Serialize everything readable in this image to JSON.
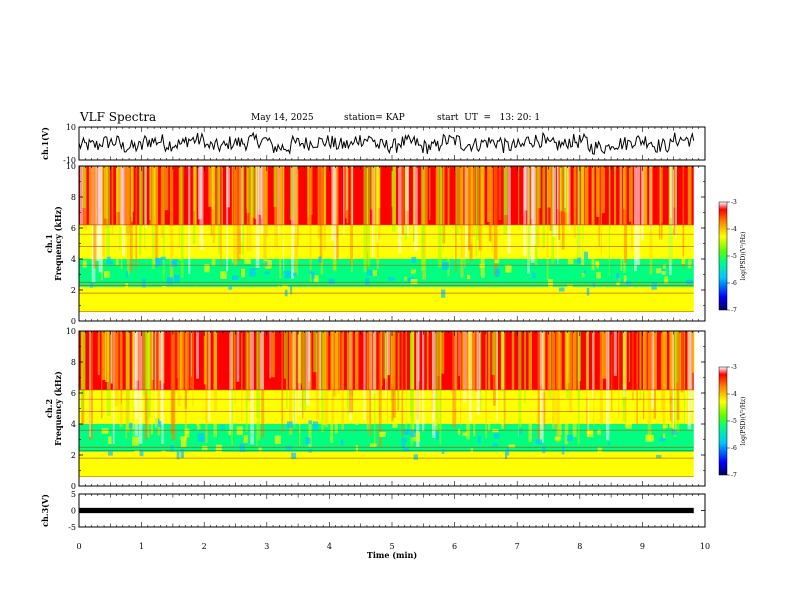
{
  "header": {
    "title": "VLF Spectra",
    "date": "May 14, 2025",
    "station": "station= KAP",
    "start": "start  UT  =   13: 20: 1"
  },
  "chart_data": [
    {
      "type": "line",
      "ylabel": "ch.1(V)",
      "ylim": [
        -10,
        10
      ],
      "yticks": [
        "10",
        "-10"
      ],
      "description_series": "voltage waveform envelope",
      "series": [
        {
          "name": "",
          "values": [
            -1.1,
            0.8,
            -2.1,
            1.5,
            -0.3,
            2.2,
            -1.8,
            0.4,
            1.9,
            -2.4,
            0.2,
            1.1,
            -0.9,
            2.6,
            -1.4,
            0.6,
            -2.0,
            1.7,
            -0.5,
            0.9,
            -1.6,
            2.0,
            -0.8,
            1.3,
            -2.2,
            0.1,
            1.8,
            -1.2,
            2.4,
            -0.6
          ]
        }
      ]
    },
    {
      "type": "heatmap",
      "ylabel": "ch.1\nFrequency (kHz)",
      "ylim": [
        0,
        10
      ],
      "yticks": [
        "0",
        "2",
        "4",
        "6",
        "8",
        "10"
      ],
      "colorbar": {
        "label": "log(PSD)(V²/Hz)",
        "ticks": [
          "-3",
          "-4",
          "-5",
          "-6",
          "-7"
        ],
        "range": [
          -7,
          -3
        ]
      }
    },
    {
      "type": "heatmap",
      "ylabel": "ch.2\nFrequency (kHz)",
      "ylim": [
        0,
        10
      ],
      "yticks": [
        "0",
        "2",
        "4",
        "6",
        "8",
        "10"
      ],
      "colorbar": {
        "label": "log(PSD)(V²/Hz)",
        "ticks": [
          "-3",
          "-4",
          "-5",
          "-6",
          "-7"
        ],
        "range": [
          -7,
          -3
        ]
      }
    },
    {
      "type": "line",
      "ylabel": "ch.3(V)",
      "ylim": [
        -5,
        5
      ],
      "yticks": [
        "5",
        "0",
        "-5"
      ],
      "series": [
        {
          "name": "",
          "values": [
            0,
            0
          ]
        }
      ]
    }
  ],
  "xaxis": {
    "label": "Time  (min)",
    "ticks": [
      "0",
      "1",
      "2",
      "3",
      "4",
      "5",
      "6",
      "7",
      "8",
      "9",
      "10"
    ],
    "range": [
      0,
      10
    ],
    "data_end": 9.82
  },
  "colors": {
    "axis": "#000000"
  }
}
